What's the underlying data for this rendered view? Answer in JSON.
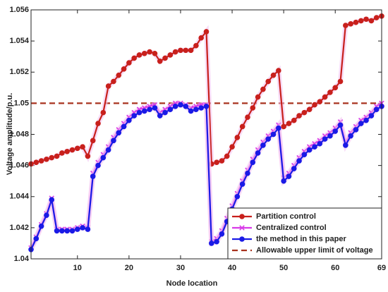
{
  "chart_data": {
    "type": "line",
    "xlabel": "Node location",
    "ylabel": "Voltage amplitude/p.u.",
    "x": [
      1,
      2,
      3,
      4,
      5,
      6,
      7,
      8,
      9,
      10,
      11,
      12,
      13,
      14,
      15,
      16,
      17,
      18,
      19,
      20,
      21,
      22,
      23,
      24,
      25,
      26,
      27,
      28,
      29,
      30,
      31,
      32,
      33,
      34,
      35,
      36,
      37,
      38,
      39,
      40,
      41,
      42,
      43,
      44,
      45,
      46,
      47,
      48,
      49,
      50,
      51,
      52,
      53,
      54,
      55,
      56,
      57,
      58,
      59,
      60,
      61,
      62,
      63,
      64,
      65,
      66,
      67,
      68,
      69
    ],
    "xlim": [
      1,
      69
    ],
    "xticks": [
      10,
      20,
      30,
      40,
      50,
      60,
      69
    ],
    "ylim": [
      1.04,
      1.056
    ],
    "yticks": [
      1.04,
      1.042,
      1.044,
      1.046,
      1.048,
      1.05,
      1.052,
      1.054,
      1.056
    ],
    "legend": "lower right",
    "series": [
      {
        "name": "Partition control",
        "color": "#c8201c",
        "marker": "circle",
        "values": [
          1.0461,
          1.0462,
          1.0463,
          1.0464,
          1.0465,
          1.0466,
          1.0468,
          1.0469,
          1.047,
          1.0471,
          1.0472,
          1.0466,
          1.0476,
          1.0487,
          1.0494,
          1.0511,
          1.0514,
          1.0518,
          1.0522,
          1.0526,
          1.0529,
          1.0531,
          1.0532,
          1.0533,
          1.0532,
          1.0527,
          1.0529,
          1.0531,
          1.0533,
          1.0534,
          1.0534,
          1.0534,
          1.0537,
          1.0542,
          1.0546,
          1.0461,
          1.0462,
          1.0463,
          1.0466,
          1.0472,
          1.0478,
          1.0485,
          1.0491,
          1.0497,
          1.0504,
          1.0509,
          1.0514,
          1.0518,
          1.0521,
          1.0485,
          1.0487,
          1.0489,
          1.0492,
          1.0494,
          1.0496,
          1.0499,
          1.0501,
          1.0504,
          1.0507,
          1.051,
          1.0514,
          1.055,
          1.0551,
          1.0552,
          1.0553,
          1.0554,
          1.0553,
          1.0555,
          1.0556
        ]
      },
      {
        "name": "Centralized control",
        "color": "#d83ae8",
        "marker": "x",
        "values": [
          1.0407,
          1.0414,
          1.0422,
          1.0429,
          1.0439,
          1.0419,
          1.0419,
          1.0419,
          1.0419,
          1.042,
          1.0421,
          1.042,
          1.0455,
          1.0462,
          1.0467,
          1.0472,
          1.0478,
          1.0483,
          1.0487,
          1.0491,
          1.0494,
          1.0496,
          1.0497,
          1.0498,
          1.0499,
          1.0494,
          1.0496,
          1.0498,
          1.05,
          1.05,
          1.0499,
          1.0497,
          1.0498,
          1.0499,
          1.0499,
          1.0411,
          1.0413,
          1.0418,
          1.0426,
          1.0434,
          1.0442,
          1.045,
          1.0457,
          1.0464,
          1.047,
          1.0475,
          1.0479,
          1.0482,
          1.0486,
          1.0452,
          1.0455,
          1.046,
          1.0465,
          1.0469,
          1.0472,
          1.0474,
          1.0476,
          1.0479,
          1.0481,
          1.0484,
          1.0488,
          1.0475,
          1.0481,
          1.0485,
          1.0489,
          1.0491,
          1.0494,
          1.0498,
          1.05
        ]
      },
      {
        "name": "the method in this paper",
        "color": "#1a1ae6",
        "marker": "circle",
        "values": [
          1.0406,
          1.0413,
          1.0421,
          1.0428,
          1.0438,
          1.0418,
          1.0418,
          1.0418,
          1.0418,
          1.0419,
          1.042,
          1.0419,
          1.0453,
          1.046,
          1.0465,
          1.047,
          1.0476,
          1.0481,
          1.0485,
          1.0489,
          1.0492,
          1.0494,
          1.0495,
          1.0496,
          1.0497,
          1.0492,
          1.0494,
          1.0496,
          1.0498,
          1.0499,
          1.0498,
          1.0495,
          1.0496,
          1.0497,
          1.0498,
          1.041,
          1.0411,
          1.0416,
          1.0424,
          1.0432,
          1.044,
          1.0448,
          1.0455,
          1.0462,
          1.0468,
          1.0473,
          1.0477,
          1.048,
          1.0484,
          1.045,
          1.0453,
          1.0458,
          1.0463,
          1.0467,
          1.047,
          1.0472,
          1.0474,
          1.0477,
          1.0479,
          1.0482,
          1.0486,
          1.0473,
          1.0479,
          1.0483,
          1.0487,
          1.0489,
          1.0492,
          1.0496,
          1.0498
        ]
      }
    ],
    "reference_line": {
      "name": "Allowable upper limit of voltage",
      "value": 1.05,
      "color": "#a8321e"
    }
  }
}
